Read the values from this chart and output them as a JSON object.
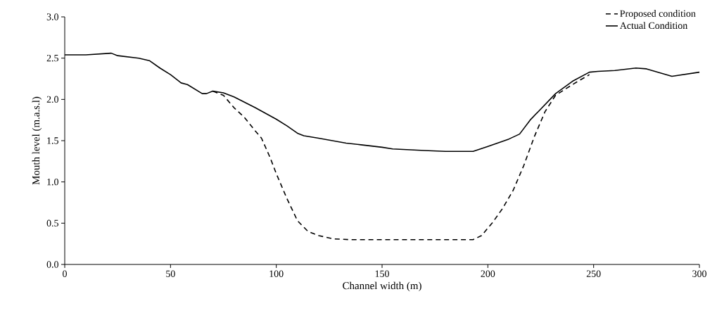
{
  "chart_data": {
    "type": "line",
    "xlabel": "Channel width (m)",
    "ylabel": "Mouth level (m.a.s.l)",
    "xlim": [
      0,
      300
    ],
    "xticks": [
      0,
      50,
      100,
      150,
      200,
      250,
      300
    ],
    "ylim": [
      0,
      3
    ],
    "yticks": [
      {
        "value": 0,
        "label": "0.0"
      },
      {
        "value": 0.5,
        "label": "0.5"
      },
      {
        "value": 1,
        "label": "1.0"
      },
      {
        "value": 1.5,
        "label": "1.5"
      },
      {
        "value": 2,
        "label": "2.0"
      },
      {
        "value": 2.5,
        "label": "2.5"
      },
      {
        "value": 3,
        "label": "3.0"
      }
    ],
    "grid": false,
    "legend": "top right",
    "marker": "none",
    "series": [
      {
        "name": "Proposed condition",
        "color": "#000000",
        "line_style": "dashed",
        "x": [
          70,
          75,
          80,
          85,
          90,
          93,
          97,
          100,
          105,
          110,
          115,
          120,
          127,
          135,
          150,
          170,
          193,
          197,
          202,
          207,
          212,
          217,
          222,
          227,
          232,
          240,
          248
        ],
        "values": [
          2.1,
          2.05,
          1.9,
          1.78,
          1.62,
          1.53,
          1.3,
          1.1,
          0.8,
          0.53,
          0.4,
          0.35,
          0.31,
          0.3,
          0.3,
          0.3,
          0.3,
          0.35,
          0.5,
          0.68,
          0.9,
          1.2,
          1.55,
          1.85,
          2.05,
          2.18,
          2.3
        ]
      },
      {
        "name": "Actual Condition",
        "color": "#000000",
        "line_style": "solid",
        "x": [
          0,
          10,
          22,
          25,
          35,
          40,
          45,
          50,
          55,
          58,
          65,
          67,
          70,
          75,
          80,
          90,
          100,
          105,
          110,
          113,
          120,
          133,
          140,
          150,
          155,
          170,
          180,
          193,
          200,
          210,
          215,
          220,
          232,
          240,
          248,
          252,
          260,
          270,
          275,
          287,
          300
        ],
        "values": [
          2.54,
          2.54,
          2.56,
          2.53,
          2.5,
          2.47,
          2.38,
          2.3,
          2.2,
          2.18,
          2.07,
          2.07,
          2.1,
          2.08,
          2.03,
          1.9,
          1.76,
          1.68,
          1.59,
          1.56,
          1.53,
          1.47,
          1.45,
          1.42,
          1.4,
          1.38,
          1.37,
          1.37,
          1.43,
          1.52,
          1.58,
          1.75,
          2.07,
          2.22,
          2.33,
          2.34,
          2.35,
          2.38,
          2.37,
          2.28,
          2.33
        ]
      }
    ]
  }
}
